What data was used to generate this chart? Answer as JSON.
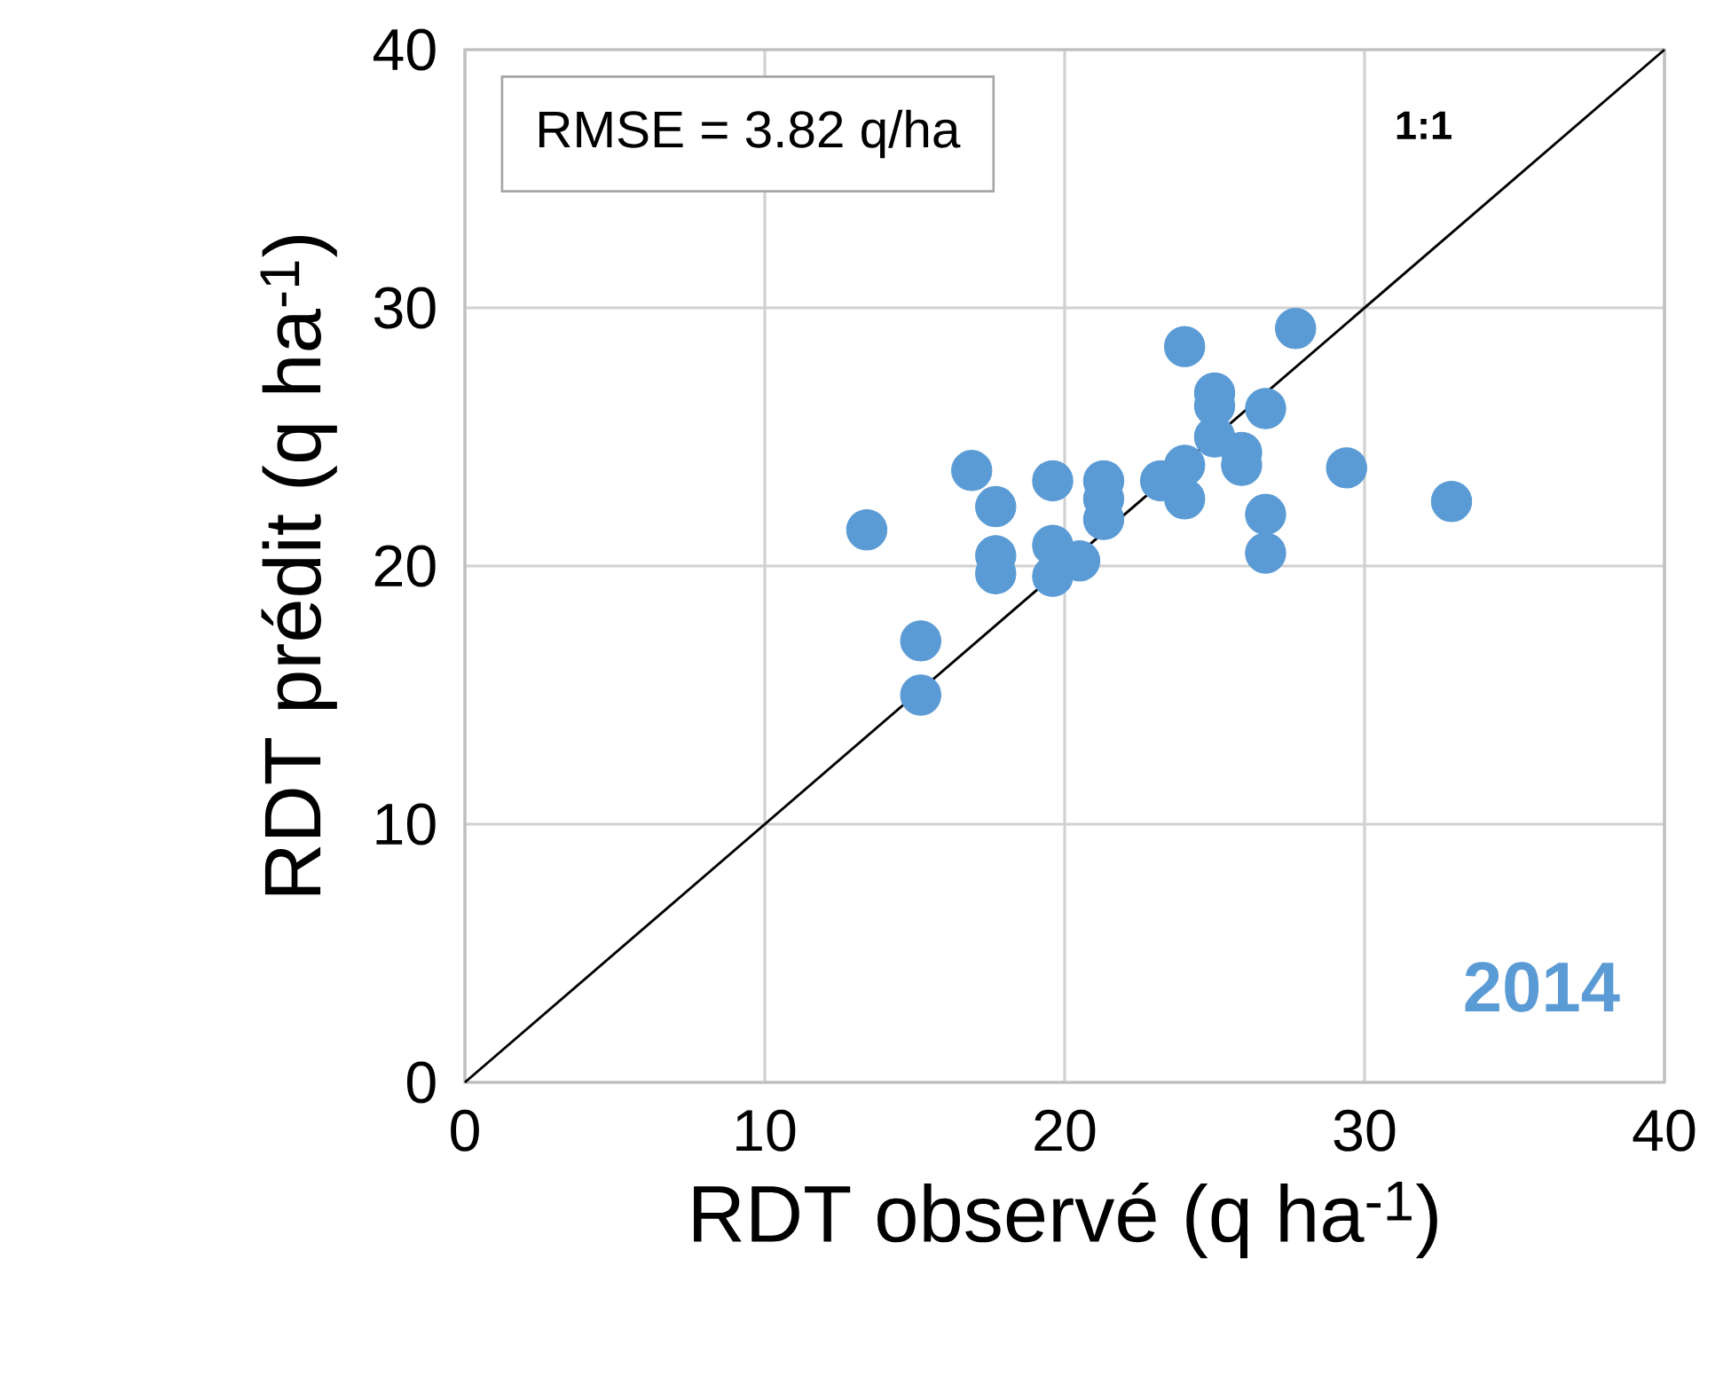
{
  "chart_data": {
    "type": "scatter",
    "xlabel": "RDT observé (q ha$^{-1}$)",
    "ylabel": "RDT prédit (q ha$^{-1}$)",
    "annotations": [
      "RMSE = 3.82 q/ha"
    ],
    "xlim": [
      0,
      40
    ],
    "ylim": [
      0,
      40
    ],
    "xticks": [
      0,
      10,
      20,
      30,
      40
    ],
    "yticks": [
      0,
      10,
      20,
      30,
      40
    ],
    "grid": true,
    "legend": false,
    "series": [
      {
        "name": "2014",
        "color": "#5b9bd5",
        "marker": "circle",
        "x": [
          13.4,
          16.9,
          17.7,
          17.7,
          17.7,
          15.2,
          15.2,
          19.6,
          19.6,
          19.6,
          20.5,
          21.3,
          21.3,
          21.3,
          23.2,
          24.0,
          24.0,
          24.0,
          25.0,
          25.0,
          25.0,
          25.9,
          25.9,
          26.7,
          26.7,
          26.7,
          27.7,
          29.4,
          32.9
        ],
        "values": [
          21.4,
          23.7,
          22.3,
          20.4,
          19.7,
          17.1,
          15.0,
          23.3,
          20.8,
          19.6,
          20.2,
          23.3,
          22.6,
          21.8,
          23.3,
          23.9,
          22.6,
          28.5,
          26.7,
          26.2,
          25.0,
          24.4,
          23.9,
          26.1,
          22.0,
          20.5,
          29.2,
          23.8,
          22.5
        ]
      },
      {
        "name": "1:1",
        "type": "line",
        "color": "#000000",
        "marker": "none",
        "line_style": "solid",
        "x": [
          0,
          40
        ],
        "values": [
          0,
          40
        ]
      }
    ]
  }
}
